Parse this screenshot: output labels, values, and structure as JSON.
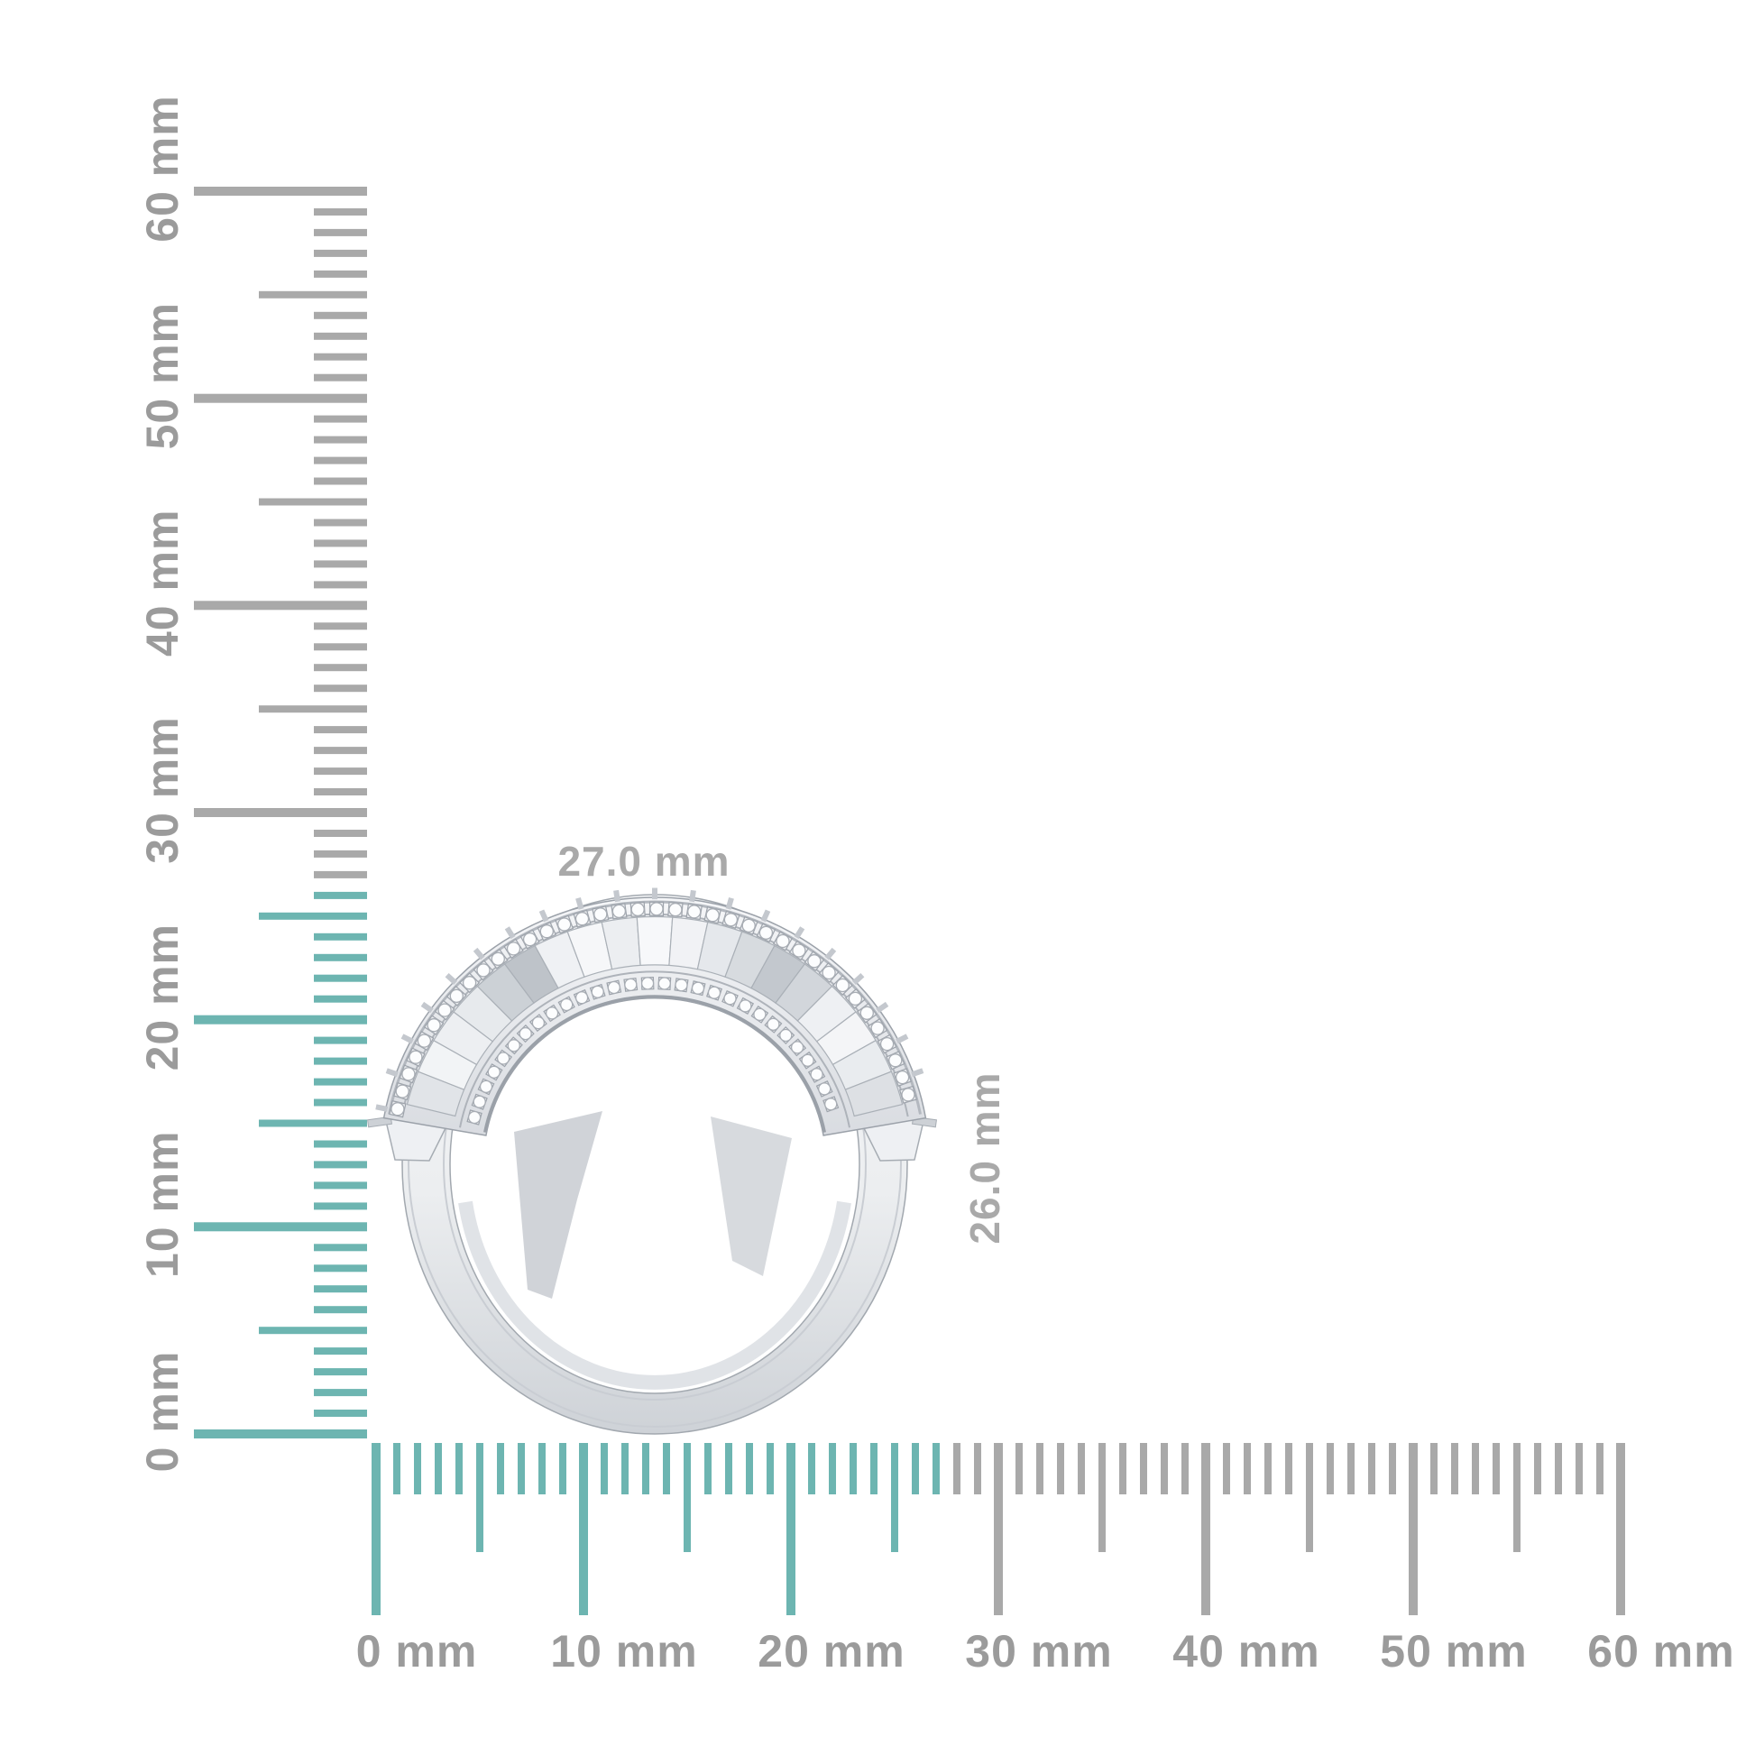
{
  "figure": {
    "background": "#ffffff",
    "description": "Side view of a white-gold ring with two rows of pave diamonds over fan-shaped facets, shown against millimeter rulers"
  },
  "colors": {
    "highlight_teal": "#6db5b1",
    "tick_gray": "#a9a9a9",
    "ruler_label_gray": "#9b9b9b",
    "dimension_label_gray": "#a9a9a9",
    "metal_light": "#f6f7f9",
    "metal_mid": "#dcdfe3",
    "metal_dark": "#aab0b7"
  },
  "rulers": {
    "vertical": {
      "orientation": "vertical",
      "unit": "mm",
      "max_mm": 60,
      "minor_step_mm": 1,
      "label_step_mm": 10,
      "highlight_to_mm": 26,
      "labels": [
        "0 mm",
        "10 mm",
        "20 mm",
        "30 mm",
        "40 mm",
        "50 mm",
        "60 mm"
      ]
    },
    "horizontal": {
      "orientation": "horizontal",
      "unit": "mm",
      "max_mm": 60,
      "minor_step_mm": 1,
      "label_step_mm": 10,
      "highlight_to_mm": 27,
      "labels": [
        "0 mm",
        "10 mm",
        "20 mm",
        "30 mm",
        "40 mm",
        "50 mm",
        "60 mm"
      ]
    }
  },
  "ring": {
    "width_label": "27.0 mm",
    "height_label": "26.0 mm"
  }
}
